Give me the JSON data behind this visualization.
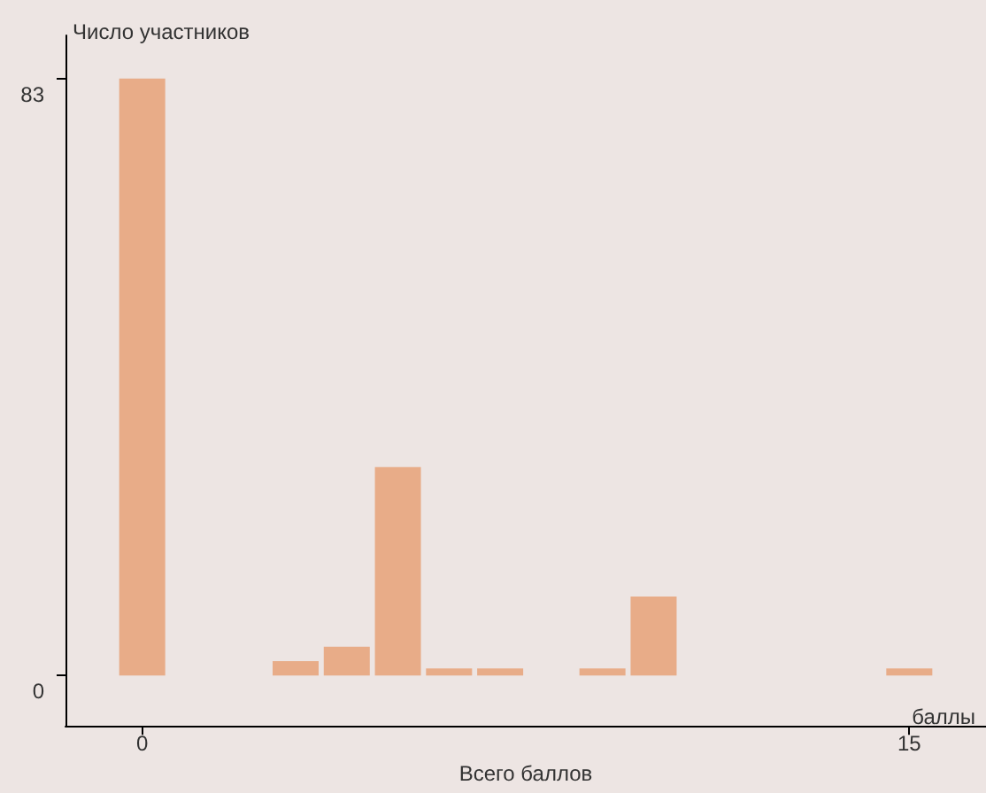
{
  "chart_data": {
    "type": "bar",
    "ylabel": "Число участников",
    "xlabel": "Всего баллов",
    "annotations": [
      "баллы"
    ],
    "x": [
      0,
      1,
      2,
      3,
      4,
      5,
      6,
      7,
      8,
      9,
      10,
      11,
      12,
      13,
      14,
      15
    ],
    "values": [
      83,
      0,
      0,
      2,
      4,
      29,
      1,
      1,
      0,
      1,
      11,
      0,
      0,
      0,
      0,
      1
    ],
    "color": "#e8ac88",
    "xlim": [
      -1.5,
      16.5
    ],
    "xticks": [
      0,
      15
    ],
    "ylim": [
      -7,
      89
    ],
    "yticks": [
      0,
      83
    ],
    "grid": false
  }
}
